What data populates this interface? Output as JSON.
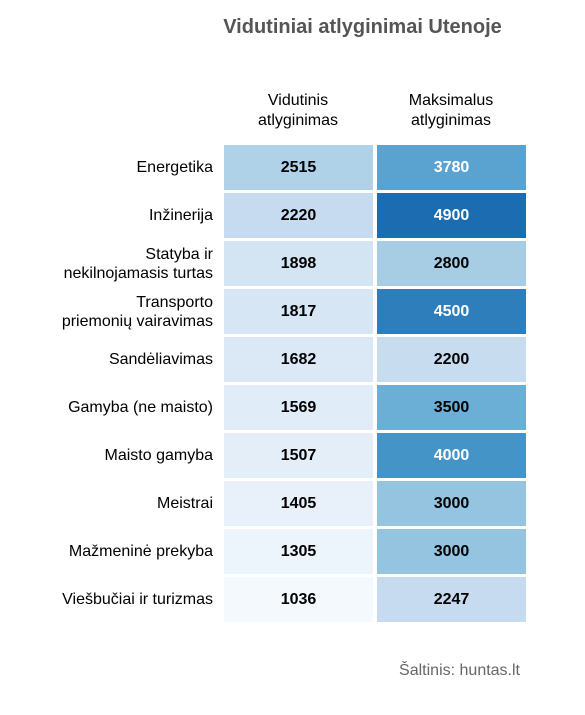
{
  "chart_data": {
    "type": "heatmap",
    "title": "Vidutiniai atlyginimai Utenoje",
    "categories": [
      "Energetika",
      "Inžinerija",
      "Statyba ir\nnekilnojamasis turtas",
      "Transporto\npriemonių vairavimas",
      "Sandėliavimas",
      "Gamyba (ne maisto)",
      "Maisto gamyba",
      "Meistrai",
      "Mažmeninė prekyba",
      "Viešbučiai ir turizmas"
    ],
    "series": [
      {
        "name": "Vidutinis\natlyginimas",
        "values": [
          2515,
          2220,
          1898,
          1817,
          1682,
          1569,
          1507,
          1405,
          1305,
          1036
        ],
        "colors": [
          "#b0d2e8",
          "#c6dbef",
          "#d3e4f3",
          "#d6e6f4",
          "#dbe9f6",
          "#e0ecf8",
          "#e3eef9",
          "#e8f1fa",
          "#ecf4fc",
          "#f4f9fe"
        ]
      },
      {
        "name": "Maksimalus\natlyginimas",
        "values": [
          3780,
          4900,
          2800,
          4500,
          2200,
          3500,
          4000,
          3000,
          3000,
          2247
        ],
        "colors": [
          "#5aa2cf",
          "#1c6cb1",
          "#a6cde3",
          "#2e7ebc",
          "#c8dcf0",
          "#6baed6",
          "#4594c7",
          "#94c4df",
          "#94c4df",
          "#c6dbef"
        ]
      }
    ],
    "source": "Šaltinis: huntas.lt"
  }
}
